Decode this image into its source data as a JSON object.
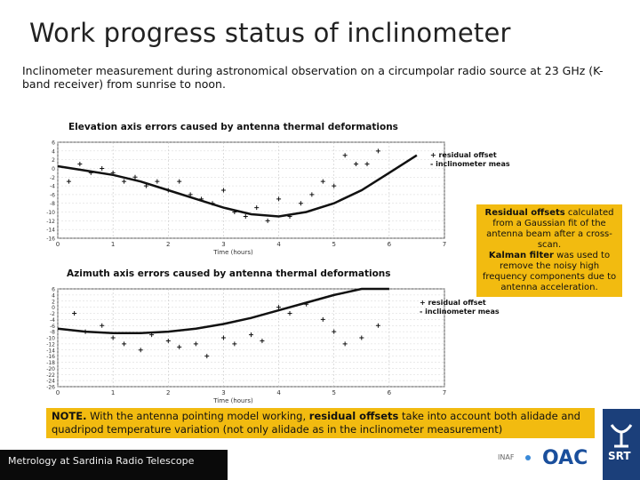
{
  "slide": {
    "title": "Work progress status of inclinometer",
    "intro": "Inclinometer measurement during astronomical observation on a circumpolar radio source at 23 GHz (K-band receiver) from sunrise to noon."
  },
  "notes": {
    "residual_offsets_bold": "Residual offsets",
    "residual_offsets_text": " calculated from a Gaussian fit of the antenna beam after a cross-scan.",
    "kalman_bold": "Kalman filter",
    "kalman_text": " was used to remove the noisy high frequency components due to antenna acceleration.",
    "bottom_note_label": "NOTE.",
    "bottom_note_pre": " With the antenna pointing model working, ",
    "bottom_note_bold": "residual offsets",
    "bottom_note_post": " take into account both alidade and quadripod temperature variation (not only alidade as in the inclinometer measurement)"
  },
  "footer": {
    "text": "Metrology at Sardinia Radio Telescope",
    "logo_inaf": "INAF",
    "logo_oac": "OAC",
    "logo_srt": "SRT"
  },
  "colors": {
    "note_yellow": "#f2bb10",
    "footer_dark": "#0a0a0a",
    "oac_blue": "#1a4f9c",
    "srt_blue": "#1b3f7a"
  },
  "chart_data": [
    {
      "type": "scatter",
      "title": "Elevation axis errors caused by antenna thermal deformations",
      "xlabel": "Time (hours)",
      "ylabel": "",
      "xlim": [
        0,
        7
      ],
      "ylim": [
        -16,
        6
      ],
      "x_ticks": [
        "0",
        "1",
        "2",
        "3",
        "4",
        "5",
        "6",
        "7"
      ],
      "y_ticks": [
        "6",
        "4",
        "2",
        "0",
        "-2",
        "-4",
        "-6",
        "-8",
        "-10",
        "-12",
        "-14",
        "-16"
      ],
      "legend": [
        "+ residual offset",
        "- inclinometer meas"
      ],
      "series": [
        {
          "name": "+ residual offset",
          "x": [
            0.2,
            0.4,
            0.6,
            0.8,
            1.0,
            1.2,
            1.4,
            1.6,
            1.8,
            2.0,
            2.2,
            2.4,
            2.6,
            2.8,
            3.0,
            3.2,
            3.4,
            3.6,
            3.8,
            4.0,
            4.2,
            4.4,
            4.6,
            4.8,
            5.0,
            5.2,
            5.4,
            5.6,
            5.8
          ],
          "y": [
            -3,
            1,
            -1,
            0,
            -1,
            -3,
            -2,
            -4,
            -3,
            -5,
            -3,
            -6,
            -7,
            -8,
            -5,
            -10,
            -11,
            -9,
            -12,
            -7,
            -11,
            -8,
            -6,
            -3,
            -4,
            3,
            1,
            1,
            4
          ]
        },
        {
          "name": "- inclinometer meas",
          "x": [
            0.0,
            0.5,
            1.0,
            1.5,
            2.0,
            2.5,
            3.0,
            3.5,
            4.0,
            4.5,
            5.0,
            5.5,
            6.0,
            6.5
          ],
          "y": [
            0.5,
            -0.5,
            -1.5,
            -3,
            -5,
            -7,
            -9,
            -10.5,
            -11,
            -10,
            -8,
            -5,
            -1,
            3
          ]
        }
      ]
    },
    {
      "type": "scatter",
      "title": "Azimuth axis errors caused by antenna thermal deformations",
      "xlabel": "Time (hours)",
      "ylabel": "",
      "xlim": [
        0,
        7
      ],
      "ylim": [
        -26,
        6
      ],
      "x_ticks": [
        "0",
        "1",
        "2",
        "3",
        "4",
        "5",
        "6",
        "7"
      ],
      "y_ticks": [
        "6",
        "4",
        "2",
        "0",
        "-2",
        "-4",
        "-6",
        "-8",
        "-10",
        "-12",
        "-14",
        "-16",
        "-18",
        "-20",
        "-22",
        "-24",
        "-26"
      ],
      "legend": [
        "+ residual offset",
        "- inclinometer meas"
      ],
      "series": [
        {
          "name": "+ residual offset",
          "x": [
            0.3,
            0.5,
            0.8,
            1.0,
            1.2,
            1.5,
            1.7,
            2.0,
            2.2,
            2.5,
            2.7,
            3.0,
            3.2,
            3.5,
            3.7,
            4.0,
            4.2,
            4.5,
            4.8,
            5.0,
            5.2,
            5.5,
            5.8
          ],
          "y": [
            -2,
            -8,
            -6,
            -10,
            -12,
            -14,
            -9,
            -11,
            -13,
            -12,
            -16,
            -10,
            -12,
            -9,
            -11,
            0,
            -2,
            1,
            -4,
            -8,
            -12,
            -10,
            -6
          ]
        },
        {
          "name": "- inclinometer meas",
          "x": [
            0.0,
            0.5,
            1.0,
            1.5,
            2.0,
            2.5,
            3.0,
            3.5,
            4.0,
            4.5,
            5.0,
            5.5,
            6.0
          ],
          "y": [
            -7,
            -8,
            -8.5,
            -8.5,
            -8,
            -7,
            -5.5,
            -3.5,
            -1,
            1.5,
            4,
            6,
            6
          ]
        }
      ]
    }
  ]
}
